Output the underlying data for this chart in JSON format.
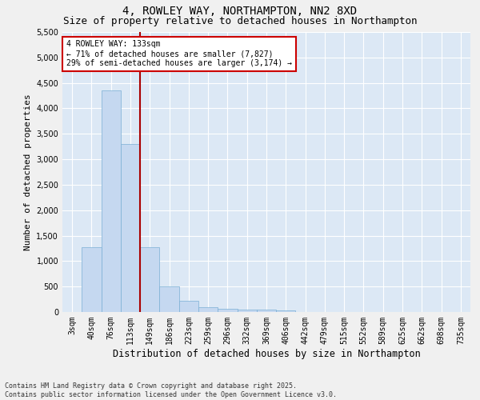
{
  "title_line1": "4, ROWLEY WAY, NORTHAMPTON, NN2 8XD",
  "title_line2": "Size of property relative to detached houses in Northampton",
  "xlabel": "Distribution of detached houses by size in Northampton",
  "ylabel": "Number of detached properties",
  "categories": [
    "3sqm",
    "40sqm",
    "76sqm",
    "113sqm",
    "149sqm",
    "186sqm",
    "223sqm",
    "259sqm",
    "296sqm",
    "332sqm",
    "369sqm",
    "406sqm",
    "442sqm",
    "479sqm",
    "515sqm",
    "552sqm",
    "589sqm",
    "625sqm",
    "662sqm",
    "698sqm",
    "735sqm"
  ],
  "values": [
    0,
    1270,
    4350,
    3300,
    1280,
    500,
    220,
    90,
    60,
    40,
    40,
    30,
    0,
    0,
    0,
    0,
    0,
    0,
    0,
    0,
    0
  ],
  "bar_color": "#c5d8f0",
  "bar_edge_color": "#7aafd4",
  "vline_x": 3.5,
  "vline_color": "#aa0000",
  "annotation_text": "4 ROWLEY WAY: 133sqm\n← 71% of detached houses are smaller (7,827)\n29% of semi-detached houses are larger (3,174) →",
  "annotation_box_color": "#ffffff",
  "annotation_box_edge_color": "#cc0000",
  "ylim": [
    0,
    5500
  ],
  "yticks": [
    0,
    500,
    1000,
    1500,
    2000,
    2500,
    3000,
    3500,
    4000,
    4500,
    5000,
    5500
  ],
  "background_color": "#dce8f5",
  "grid_color": "#ffffff",
  "footnote": "Contains HM Land Registry data © Crown copyright and database right 2025.\nContains public sector information licensed under the Open Government Licence v3.0.",
  "title_fontsize": 10,
  "subtitle_fontsize": 9,
  "xlabel_fontsize": 8.5,
  "ylabel_fontsize": 8,
  "tick_fontsize": 7,
  "annot_fontsize": 7,
  "footnote_fontsize": 6
}
